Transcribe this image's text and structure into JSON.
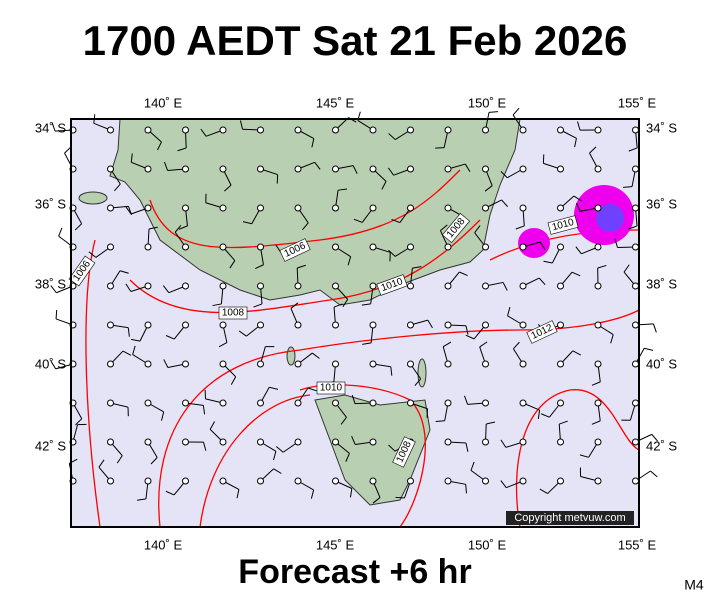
{
  "title": "1700 AEDT Sat 21 Feb 2026",
  "longitude_labels": [
    "140˚ E",
    "145˚ E",
    "150˚ E",
    "155˚ E"
  ],
  "latitude_labels": [
    "34˚ S",
    "36˚ S",
    "38˚ S",
    "40˚ S",
    "42˚ S"
  ],
  "isobar_labels": [
    "1006",
    "1006",
    "1008",
    "1008",
    "1010",
    "1010",
    "1012",
    "1010",
    "1008"
  ],
  "footer": "Forecast +6 hr",
  "copyright": "Copyright metvuw.com",
  "map_code": "M4"
}
